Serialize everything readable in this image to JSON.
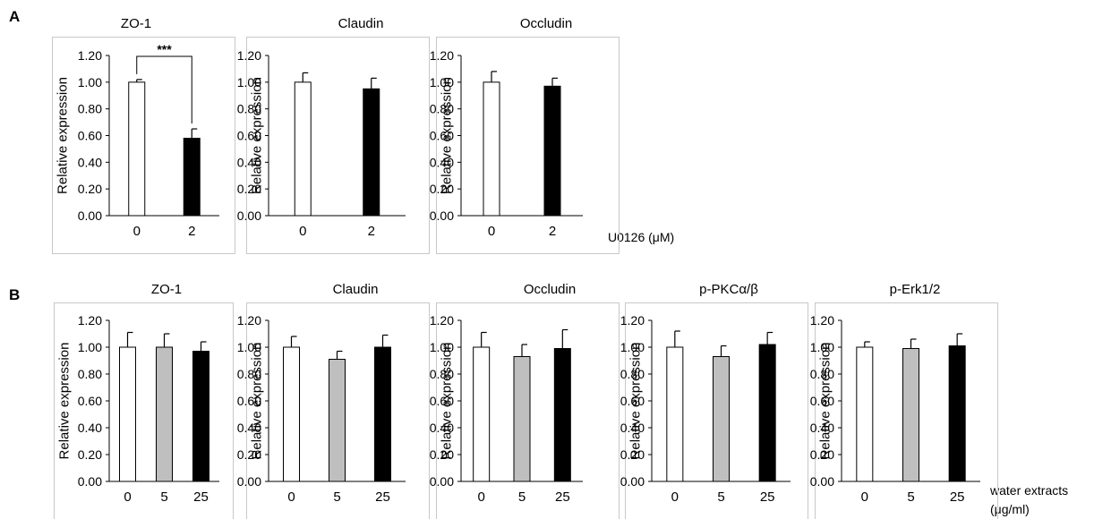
{
  "figure": {
    "panel_labels": [
      "A",
      "B"
    ],
    "y_tick_labels": [
      "0.00",
      "0.20",
      "0.40",
      "0.60",
      "0.80",
      "1.00",
      "1.20"
    ],
    "row_a_x_title": "U0126 (μM)",
    "row_b_x_title": [
      "water extracts",
      "(μg/ml)"
    ]
  },
  "colors": {
    "white": "#ffffff",
    "gray": "#bfbfbf",
    "black": "#000000",
    "frame": "#c8c8c8"
  },
  "chart_data": [
    {
      "type": "bar",
      "panel": "A",
      "title": "ZO-1",
      "ylabel": "Relative expression",
      "ylim": [
        0,
        1.2
      ],
      "categories": [
        "0",
        "2"
      ],
      "values": [
        1.0,
        0.58
      ],
      "errors": [
        0.02,
        0.07
      ],
      "fills": [
        "white",
        "black"
      ],
      "significance": "***"
    },
    {
      "type": "bar",
      "panel": "A",
      "title": "Claudin",
      "ylabel": "Relative expression",
      "ylim": [
        0,
        1.2
      ],
      "categories": [
        "0",
        "2"
      ],
      "values": [
        1.0,
        0.95
      ],
      "errors": [
        0.07,
        0.08
      ],
      "fills": [
        "white",
        "black"
      ]
    },
    {
      "type": "bar",
      "panel": "A",
      "title": "Occludin",
      "ylabel": "Relative expression",
      "ylim": [
        0,
        1.2
      ],
      "categories": [
        "0",
        "2"
      ],
      "values": [
        1.0,
        0.97
      ],
      "errors": [
        0.08,
        0.06
      ],
      "fills": [
        "white",
        "black"
      ]
    },
    {
      "type": "bar",
      "panel": "B",
      "title": "ZO-1",
      "ylabel": "Relative expression",
      "ylim": [
        0,
        1.2
      ],
      "categories": [
        "0",
        "5",
        "25"
      ],
      "values": [
        1.0,
        1.0,
        0.97
      ],
      "errors": [
        0.11,
        0.1,
        0.07
      ],
      "fills": [
        "white",
        "gray",
        "black"
      ]
    },
    {
      "type": "bar",
      "panel": "B",
      "title": "Claudin",
      "ylabel": "Relative expression",
      "ylim": [
        0,
        1.2
      ],
      "categories": [
        "0",
        "5",
        "25"
      ],
      "values": [
        1.0,
        0.91,
        1.0
      ],
      "errors": [
        0.08,
        0.06,
        0.09
      ],
      "fills": [
        "white",
        "gray",
        "black"
      ]
    },
    {
      "type": "bar",
      "panel": "B",
      "title": "Occludin",
      "ylabel": "Relative expression",
      "ylim": [
        0,
        1.2
      ],
      "categories": [
        "0",
        "5",
        "25"
      ],
      "values": [
        1.0,
        0.93,
        0.99
      ],
      "errors": [
        0.11,
        0.09,
        0.14
      ],
      "fills": [
        "white",
        "gray",
        "black"
      ]
    },
    {
      "type": "bar",
      "panel": "B",
      "title": "p-PKCα/β",
      "ylabel": "Relative expression",
      "ylim": [
        0,
        1.2
      ],
      "categories": [
        "0",
        "5",
        "25"
      ],
      "values": [
        1.0,
        0.93,
        1.02
      ],
      "errors": [
        0.12,
        0.08,
        0.09
      ],
      "fills": [
        "white",
        "gray",
        "black"
      ]
    },
    {
      "type": "bar",
      "panel": "B",
      "title": "p-Erk1/2",
      "ylabel": "Relative expression",
      "ylim": [
        0,
        1.2
      ],
      "categories": [
        "0",
        "5",
        "25"
      ],
      "values": [
        1.0,
        0.99,
        1.01
      ],
      "errors": [
        0.04,
        0.07,
        0.09
      ],
      "fills": [
        "white",
        "gray",
        "black"
      ]
    }
  ]
}
